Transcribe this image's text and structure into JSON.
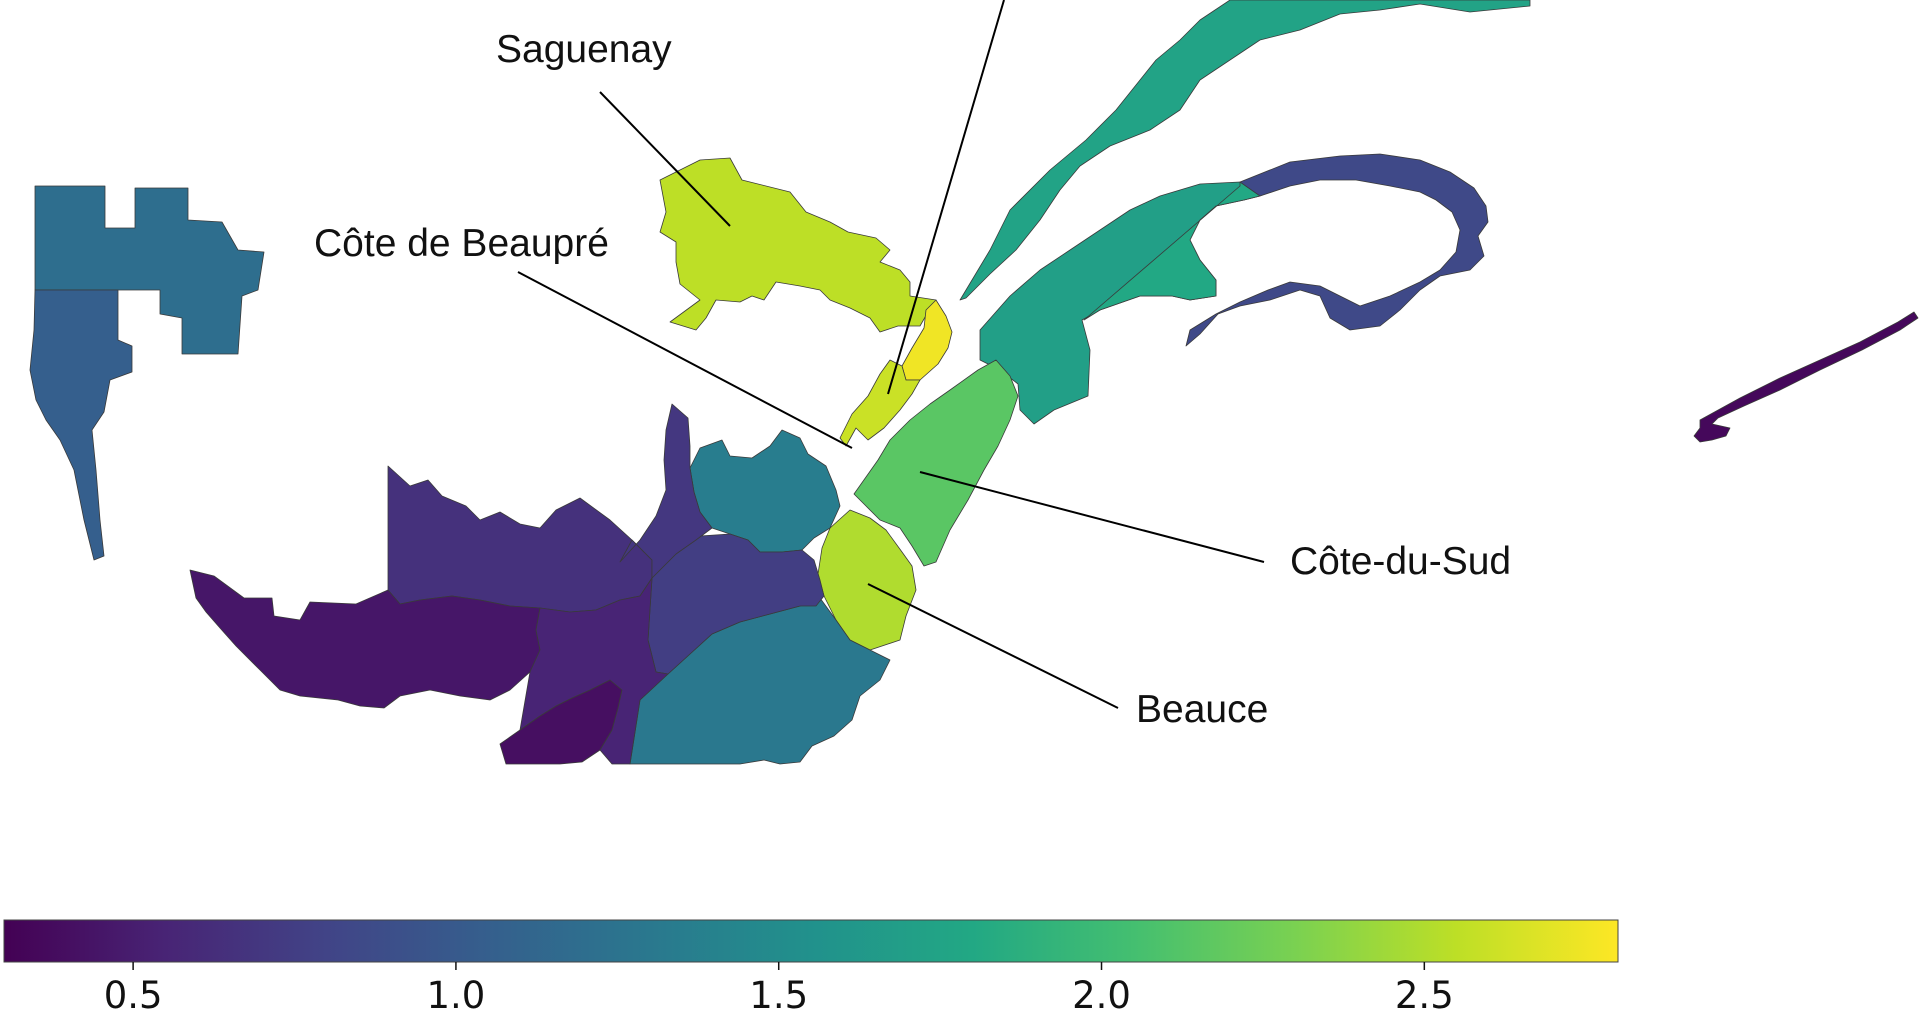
{
  "labels": {
    "saguenay": "Saguenay",
    "cote_de_beaupre": "Côte de Beaupré",
    "cote_du_sud": "Côte-du-Sud",
    "beauce": "Beauce"
  },
  "colorbar": {
    "colormap": "viridis",
    "min": 0.3,
    "max": 2.8,
    "ticks": [
      "0.5",
      "1.0",
      "1.5",
      "2.0",
      "2.5"
    ],
    "tick_values": [
      0.5,
      1.0,
      1.5,
      2.0,
      2.5
    ]
  },
  "regions": [
    {
      "name": "region-west-upper",
      "value": 1.2
    },
    {
      "name": "region-west-lower",
      "value": 1.05
    },
    {
      "name": "region-saguenay",
      "value": 2.55
    },
    {
      "name": "region-north-shore",
      "value": 1.75
    },
    {
      "name": "region-north-shore-east",
      "value": 0.85
    },
    {
      "name": "region-cote-de-beaupre",
      "value": 2.6
    },
    {
      "name": "region-quebec-city",
      "value": 2.75
    },
    {
      "name": "region-cote-du-sud",
      "value": 2.15
    },
    {
      "name": "region-bas-saint-laurent",
      "value": 1.7
    },
    {
      "name": "region-gaspesie",
      "value": 1.8
    },
    {
      "name": "region-beauce",
      "value": 2.5
    },
    {
      "name": "region-mauricie",
      "value": 1.35
    },
    {
      "name": "region-estrie",
      "value": 1.3
    },
    {
      "name": "region-centre-du-quebec",
      "value": 0.75
    },
    {
      "name": "region-laurentides",
      "value": 0.65
    },
    {
      "name": "region-lanaudiere",
      "value": 0.7
    },
    {
      "name": "region-outaouais",
      "value": 0.45
    },
    {
      "name": "region-montreal",
      "value": 0.4
    },
    {
      "name": "region-monteregie",
      "value": 0.55
    },
    {
      "name": "region-magdalen",
      "value": 0.35
    }
  ]
}
